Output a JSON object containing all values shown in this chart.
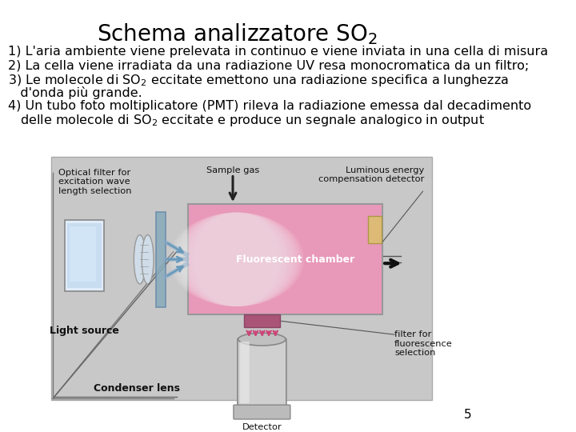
{
  "bg_color": "#ffffff",
  "text_color": "#000000",
  "title": "Schema analizzatore SO$_2$",
  "body_lines": [
    "1) L'aria ambiente viene prelevata in continuo e viene inviata in una cella di misura",
    "2) La cella viene irradiata da una radiazione UV resa monocromatica da un filtro;",
    "3) Le molecole di SO$_2$ eccitate emettono una radiazione specifica a lunghezza",
    "   d'onda più grande.",
    "4) Un tubo foto moltiplicatore (PMT) rileva la radiazione emessa dal decadimento",
    "   delle molecole di SO$_2$ eccitate e produce un segnale analogico in output"
  ],
  "diagram_bg": "#c8c8c8",
  "page_number": "5",
  "font_size_title": 20,
  "font_size_body": 11.5
}
